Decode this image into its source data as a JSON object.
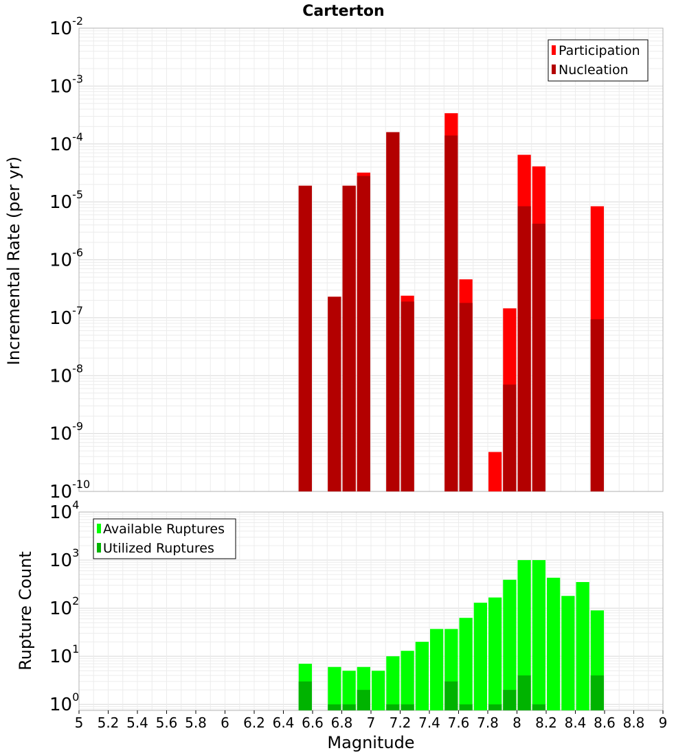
{
  "chart_data": [
    {
      "type": "bar",
      "title": "Carterton",
      "ylabel": "Incremental Rate (per yr)",
      "xlabel": "",
      "yscale": "log",
      "ylim": [
        1e-10,
        0.01
      ],
      "xlim": [
        5,
        9
      ],
      "ytick_exponents": [
        "-10",
        "-9",
        "-8",
        "-7",
        "-6",
        "-5",
        "-4",
        "-3",
        "-2"
      ],
      "legend": {
        "placement": "top-right"
      },
      "series": [
        {
          "name": "Participation",
          "color": "#ff0000",
          "x": [
            6.55,
            6.75,
            6.85,
            6.95,
            7.15,
            7.25,
            7.55,
            7.65,
            7.85,
            7.95,
            8.05,
            8.15,
            8.55
          ],
          "values": [
            1.9e-05,
            2.3e-07,
            1.9e-05,
            3.2e-05,
            0.00016,
            2.4e-07,
            0.00034,
            4.6e-07,
            4.8e-10,
            1.45e-07,
            6.5e-05,
            4.1e-05,
            8.4e-06
          ]
        },
        {
          "name": "Nucleation",
          "color": "#b30000",
          "x": [
            6.55,
            6.75,
            6.85,
            6.95,
            7.15,
            7.25,
            7.55,
            7.65,
            7.85,
            7.95,
            8.05,
            8.15,
            8.55
          ],
          "values": [
            1.9e-05,
            2.3e-07,
            1.9e-05,
            2.8e-05,
            0.00016,
            1.9e-07,
            0.00014,
            1.8e-07,
            null,
            7e-09,
            8.4e-06,
            4.2e-06,
            9.4e-08
          ]
        }
      ]
    },
    {
      "type": "bar",
      "title": "",
      "ylabel": "Rupture Count",
      "xlabel": "Magnitude",
      "yscale": "log",
      "ylim": [
        0.75,
        10000
      ],
      "xlim": [
        5,
        9
      ],
      "ytick_exponents": [
        "0",
        "1",
        "2",
        "3",
        "4"
      ],
      "xticks": [
        "5",
        "5.2",
        "5.4",
        "5.6",
        "5.8",
        "6",
        "6.2",
        "6.4",
        "6.6",
        "6.8",
        "7",
        "7.2",
        "7.4",
        "7.6",
        "7.8",
        "8",
        "8.2",
        "8.4",
        "8.6",
        "8.8",
        "9"
      ],
      "legend": {
        "placement": "top-left"
      },
      "series": [
        {
          "name": "Available Ruptures",
          "color": "#00ff00",
          "x": [
            6.55,
            6.75,
            6.85,
            6.95,
            7.05,
            7.15,
            7.25,
            7.35,
            7.45,
            7.55,
            7.65,
            7.75,
            7.85,
            7.95,
            8.05,
            8.15,
            8.25,
            8.35,
            8.45,
            8.55
          ],
          "values": [
            7,
            6,
            5,
            6,
            5,
            10,
            13,
            20,
            37,
            37,
            63,
            130,
            167,
            390,
            1000,
            1000,
            430,
            180,
            350,
            90
          ]
        },
        {
          "name": "Utilized Ruptures",
          "color": "#00b300",
          "x": [
            6.55,
            6.75,
            6.85,
            6.95,
            7.05,
            7.15,
            7.25,
            7.35,
            7.45,
            7.55,
            7.65,
            7.75,
            7.85,
            7.95,
            8.05,
            8.15,
            8.25,
            8.35,
            8.45,
            8.55
          ],
          "values": [
            3,
            1,
            1,
            2,
            null,
            1,
            1,
            null,
            null,
            3,
            1,
            null,
            1,
            2,
            4,
            1,
            null,
            null,
            null,
            4
          ]
        }
      ]
    }
  ]
}
